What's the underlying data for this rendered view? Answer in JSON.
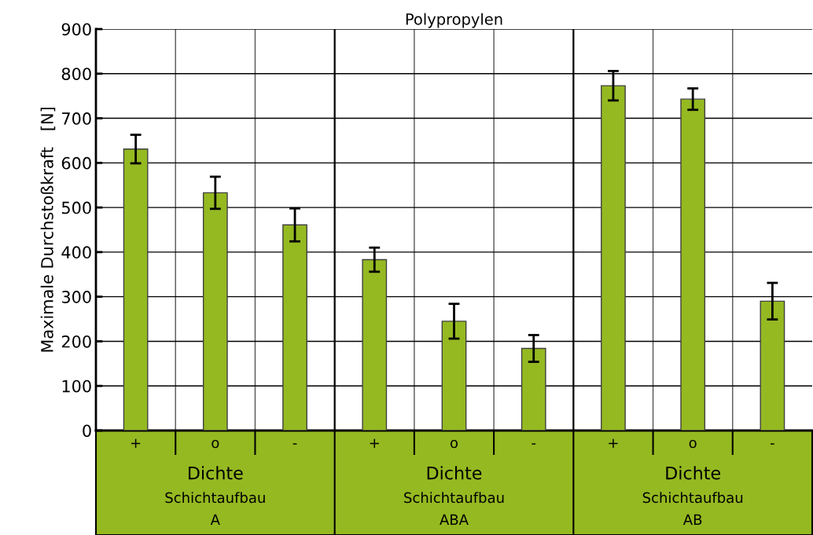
{
  "chart_data": {
    "type": "bar",
    "title": "Polypropylen",
    "ylabel": "Maximale Durchstoßkraft   [N]",
    "categories": [
      "+",
      "o",
      "-",
      "+",
      "o",
      "-",
      "+",
      "o",
      "-"
    ],
    "values": [
      631,
      533,
      461,
      383,
      245,
      184,
      773,
      743,
      290
    ],
    "errors": [
      32,
      36,
      37,
      27,
      39,
      30,
      33,
      24,
      41
    ],
    "color": "#95b921",
    "ylim": [
      0,
      900
    ],
    "yticks": [
      0,
      100,
      200,
      300,
      400,
      500,
      600,
      700,
      800,
      900
    ],
    "grid": true,
    "annotations": [
      "Dichte",
      "Schichtaufbau",
      "A",
      "Dichte",
      "Schichtaufbau",
      "ABA",
      "Dichte",
      "Schichtaufbau",
      "AB"
    ]
  }
}
